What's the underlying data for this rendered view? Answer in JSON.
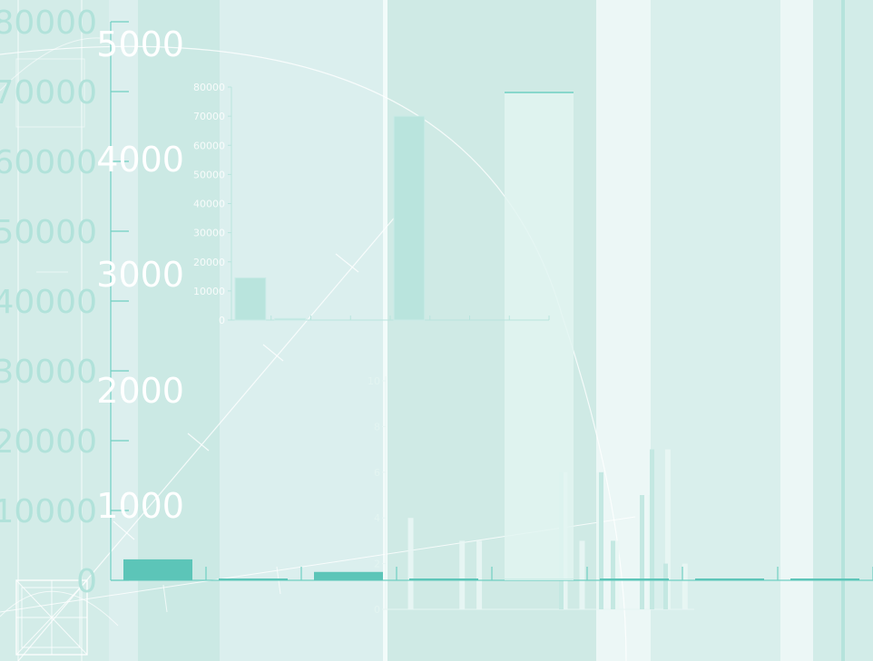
{
  "colors": {
    "background": "#d9efec",
    "bar": "#5cc5b8",
    "axis": "#6fcfc2",
    "tick_text_faint": "#b1e2da",
    "white": "#ffffff"
  },
  "chart_data": [
    {
      "type": "bar",
      "layer": "main",
      "categories": [
        "",
        "",
        "",
        "",
        "",
        "",
        "",
        ""
      ],
      "values": [
        3000,
        0,
        1200,
        0,
        0,
        0,
        0,
        0
      ],
      "ylim": [
        0,
        80000
      ],
      "yticks_left": [
        "0",
        "10000",
        "20000",
        "30000",
        "40000",
        "50000",
        "60000",
        "70000",
        "80000"
      ],
      "yticks_overlay": [
        "1000",
        "2000",
        "3000",
        "4000",
        "5000"
      ],
      "title": "",
      "xlabel": "",
      "ylabel": ""
    },
    {
      "type": "bar",
      "layer": "inset",
      "categories": [
        "",
        "",
        "",
        "",
        "",
        "",
        "",
        ""
      ],
      "values": [
        14500,
        500,
        0,
        0,
        70000,
        0,
        0,
        0
      ],
      "ylim": [
        0,
        80000
      ],
      "yticks": [
        "0",
        "10000",
        "20000",
        "30000",
        "40000",
        "50000",
        "60000",
        "70000",
        "80000"
      ],
      "title": "",
      "xlabel": "",
      "ylabel": ""
    },
    {
      "type": "bar",
      "layer": "faint-inset",
      "values": [
        0,
        4,
        0,
        0,
        3,
        3,
        0,
        0,
        0,
        0,
        6,
        3,
        6,
        3,
        0,
        5,
        7,
        2
      ],
      "ylim": [
        0,
        10
      ],
      "yticks": [
        "0",
        "2",
        "4",
        "6",
        "8",
        "10"
      ],
      "title": "",
      "xlabel": "",
      "ylabel": ""
    }
  ]
}
